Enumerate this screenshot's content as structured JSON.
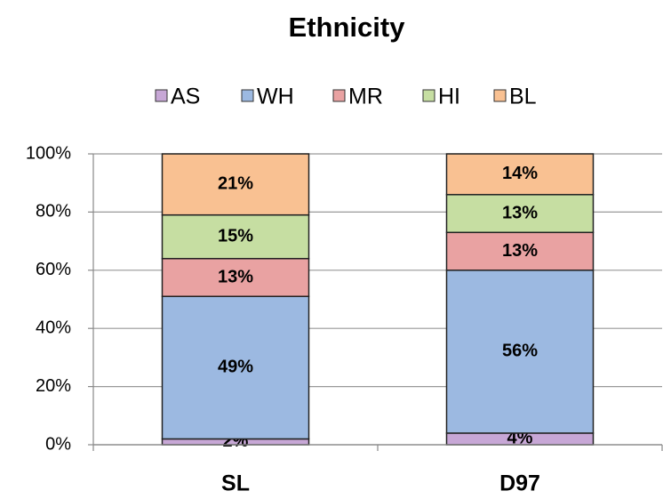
{
  "chart_data": {
    "type": "stacked_bar",
    "title": "Ethnicity",
    "categories": [
      "SL",
      "D97"
    ],
    "series": [
      {
        "name": "AS",
        "color": "#c7a7d6",
        "values": [
          2,
          4
        ],
        "value_labels": [
          "2%",
          "4%"
        ]
      },
      {
        "name": "WH",
        "color": "#9cb9e1",
        "values": [
          49,
          56
        ],
        "value_labels": [
          "49%",
          "56%"
        ]
      },
      {
        "name": "MR",
        "color": "#e9a2a2",
        "values": [
          13,
          13
        ],
        "value_labels": [
          "13%",
          "13%"
        ]
      },
      {
        "name": "HI",
        "color": "#c6dea2",
        "values": [
          15,
          13
        ],
        "value_labels": [
          "15%",
          "13%"
        ]
      },
      {
        "name": "BL",
        "color": "#f9c192",
        "values": [
          21,
          14
        ],
        "value_labels": [
          "21%",
          "14%"
        ]
      }
    ],
    "ylim": [
      0,
      100
    ],
    "yticks": [
      {
        "value": 0,
        "label": "0%"
      },
      {
        "value": 20,
        "label": "20%"
      },
      {
        "value": 40,
        "label": "40%"
      },
      {
        "value": 60,
        "label": "60%"
      },
      {
        "value": 80,
        "label": "80%"
      },
      {
        "value": 100,
        "label": "100%"
      }
    ],
    "grid": true,
    "legend": "top"
  }
}
